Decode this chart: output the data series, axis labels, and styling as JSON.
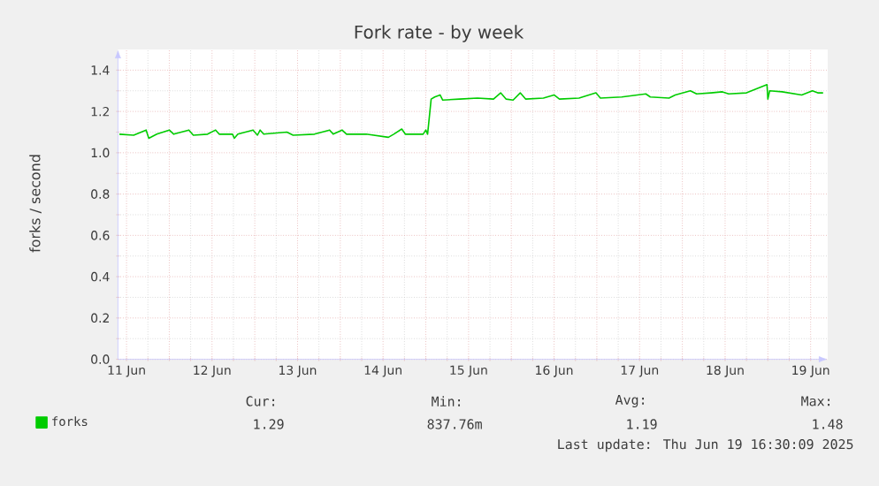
{
  "chart_data": {
    "type": "line",
    "title": "Fork rate - by week",
    "ylabel": "forks / second",
    "xlim": [
      "2025-06-11T09:36",
      "2025-06-19T16:48"
    ],
    "ylim": [
      0,
      1.5
    ],
    "xticks": [
      {
        "value": "2025-06-11T12:00",
        "label": "11 Jun"
      },
      {
        "value": "2025-06-12T00:00",
        "label": null
      },
      {
        "value": "2025-06-12T12:00",
        "label": "12 Jun"
      },
      {
        "value": "2025-06-13T00:00",
        "label": null
      },
      {
        "value": "2025-06-13T12:00",
        "label": "13 Jun"
      },
      {
        "value": "2025-06-14T00:00",
        "label": null
      },
      {
        "value": "2025-06-14T12:00",
        "label": "14 Jun"
      },
      {
        "value": "2025-06-15T00:00",
        "label": null
      },
      {
        "value": "2025-06-15T12:00",
        "label": "15 Jun"
      },
      {
        "value": "2025-06-16T00:00",
        "label": null
      },
      {
        "value": "2025-06-16T12:00",
        "label": "16 Jun"
      },
      {
        "value": "2025-06-17T00:00",
        "label": null
      },
      {
        "value": "2025-06-17T12:00",
        "label": "17 Jun"
      },
      {
        "value": "2025-06-18T00:00",
        "label": null
      },
      {
        "value": "2025-06-18T12:00",
        "label": "18 Jun"
      },
      {
        "value": "2025-06-19T00:00",
        "label": null
      },
      {
        "value": "2025-06-19T12:00",
        "label": "19 Jun"
      }
    ],
    "yticks": [
      {
        "value": 0,
        "label": "0.0"
      },
      {
        "value": 0.2,
        "label": "0.2"
      },
      {
        "value": 0.4,
        "label": "0.4"
      },
      {
        "value": 0.6,
        "label": "0.6"
      },
      {
        "value": 0.8,
        "label": "0.8"
      },
      {
        "value": 1.0,
        "label": "1.0"
      },
      {
        "value": 1.2,
        "label": "1.2"
      },
      {
        "value": 1.4,
        "label": "1.4"
      }
    ],
    "grid": true,
    "legend": "bottom",
    "x": [
      "2025-06-11T10:00",
      "2025-06-11T14:00",
      "2025-06-11T17:30",
      "2025-06-11T18:15",
      "2025-06-11T20:30",
      "2025-06-12T00:00",
      "2025-06-12T01:15",
      "2025-06-12T05:30",
      "2025-06-12T06:45",
      "2025-06-12T10:45",
      "2025-06-12T13:00",
      "2025-06-12T14:00",
      "2025-06-12T17:45",
      "2025-06-12T18:15",
      "2025-06-12T19:15",
      "2025-06-12T23:30",
      "2025-06-13T00:45",
      "2025-06-13T01:30",
      "2025-06-13T02:30",
      "2025-06-13T09:00",
      "2025-06-13T10:45",
      "2025-06-13T16:45",
      "2025-06-13T21:00",
      "2025-06-13T22:00",
      "2025-06-14T00:30",
      "2025-06-14T01:45",
      "2025-06-14T07:15",
      "2025-06-14T13:30",
      "2025-06-14T15:00",
      "2025-06-14T17:15",
      "2025-06-14T18:15",
      "2025-06-14T23:15",
      "2025-06-15T00:00",
      "2025-06-15T00:30",
      "2025-06-15T01:30",
      "2025-06-15T02:30",
      "2025-06-15T04:00",
      "2025-06-15T04:45",
      "2025-06-15T09:30",
      "2025-06-15T14:30",
      "2025-06-15T19:00",
      "2025-06-15T21:00",
      "2025-06-15T22:30",
      "2025-06-16T00:30",
      "2025-06-16T02:30",
      "2025-06-16T04:00",
      "2025-06-16T09:00",
      "2025-06-16T12:00",
      "2025-06-16T13:30",
      "2025-06-16T19:00",
      "2025-06-16T23:45",
      "2025-06-17T01:00",
      "2025-06-17T07:00",
      "2025-06-17T13:45",
      "2025-06-17T15:00",
      "2025-06-17T20:15",
      "2025-06-17T22:00",
      "2025-06-18T02:15",
      "2025-06-18T04:00",
      "2025-06-18T08:00",
      "2025-06-18T11:15",
      "2025-06-18T13:00",
      "2025-06-18T18:00",
      "2025-06-18T23:45",
      "2025-06-19T00:00",
      "2025-06-19T00:30",
      "2025-06-19T04:00",
      "2025-06-19T09:30",
      "2025-06-19T12:30",
      "2025-06-19T14:00",
      "2025-06-19T15:30"
    ],
    "series": [
      {
        "name": "forks",
        "color": "#00cc00",
        "values": [
          1.09,
          1.085,
          1.11,
          1.07,
          1.09,
          1.11,
          1.09,
          1.11,
          1.085,
          1.09,
          1.11,
          1.09,
          1.09,
          1.07,
          1.09,
          1.11,
          1.085,
          1.11,
          1.09,
          1.1,
          1.085,
          1.09,
          1.11,
          1.09,
          1.11,
          1.09,
          1.09,
          1.075,
          1.09,
          1.115,
          1.09,
          1.09,
          1.11,
          1.09,
          1.26,
          1.27,
          1.28,
          1.255,
          1.26,
          1.265,
          1.26,
          1.29,
          1.26,
          1.255,
          1.29,
          1.26,
          1.265,
          1.28,
          1.26,
          1.265,
          1.29,
          1.265,
          1.27,
          1.285,
          1.27,
          1.265,
          1.28,
          1.3,
          1.285,
          1.29,
          1.295,
          1.285,
          1.29,
          1.33,
          1.26,
          1.3,
          1.295,
          1.28,
          1.3,
          1.29,
          1.29
        ]
      }
    ],
    "annotations": [
      "Cur:",
      "Min:",
      "Avg:",
      "Max:",
      "1.29",
      "837.76m",
      "1.19",
      "1.48",
      "Last update: Thu Jun 19 16:30:09 2025"
    ]
  }
}
